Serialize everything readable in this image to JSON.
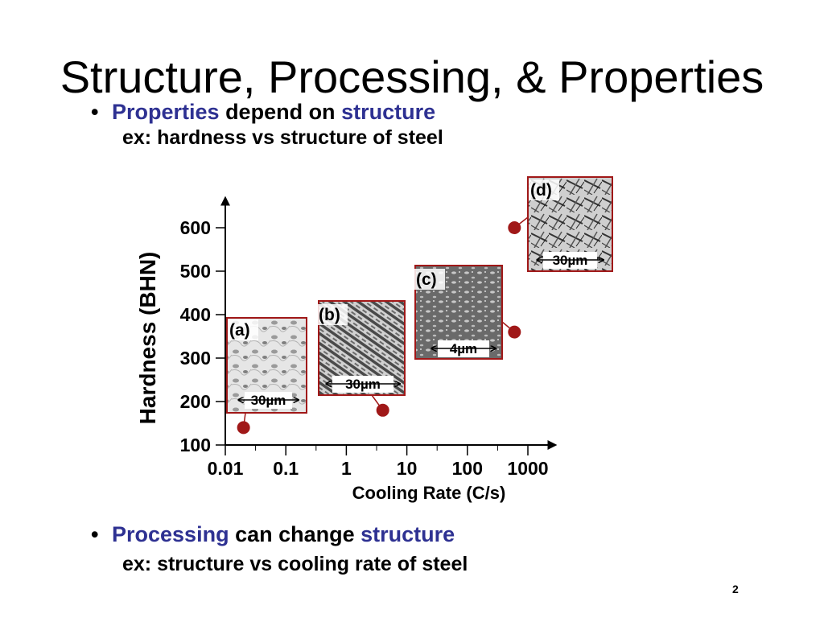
{
  "slide": {
    "title": "Structure, Processing, & Properties",
    "page_number": "2"
  },
  "bullet1": {
    "word1": "Properties",
    "word2": " depend on ",
    "word3": "structure",
    "sub": "ex:  hardness vs structure of steel"
  },
  "bullet2": {
    "word1": "Processing",
    "word2": " can change ",
    "word3": "structure",
    "sub": "ex:  structure vs cooling rate of steel"
  },
  "colors": {
    "highlight": "#2e3192",
    "point": "#a01818",
    "frame": "#a01818"
  },
  "chart_data": {
    "type": "scatter",
    "xlabel": "Cooling Rate (C/s)",
    "ylabel": "Hardness (BHN)",
    "x_scale": "log",
    "xlim": [
      0.01,
      1000
    ],
    "ylim": [
      100,
      600
    ],
    "x_ticks": [
      "0.01",
      "0.1",
      "1",
      "10",
      "100",
      "1000"
    ],
    "y_ticks": [
      "100",
      "200",
      "300",
      "400",
      "500",
      "600"
    ],
    "points": [
      {
        "x": 0.02,
        "y": 140,
        "label": "(a)",
        "scale": "30µm"
      },
      {
        "x": 4,
        "y": 180,
        "label": "(b)",
        "scale": "30µm"
      },
      {
        "x": 600,
        "y": 360,
        "label": "(c)",
        "scale": "4µm"
      },
      {
        "x": 600,
        "y": 600,
        "label": "(d)",
        "scale": "30µm"
      }
    ]
  }
}
